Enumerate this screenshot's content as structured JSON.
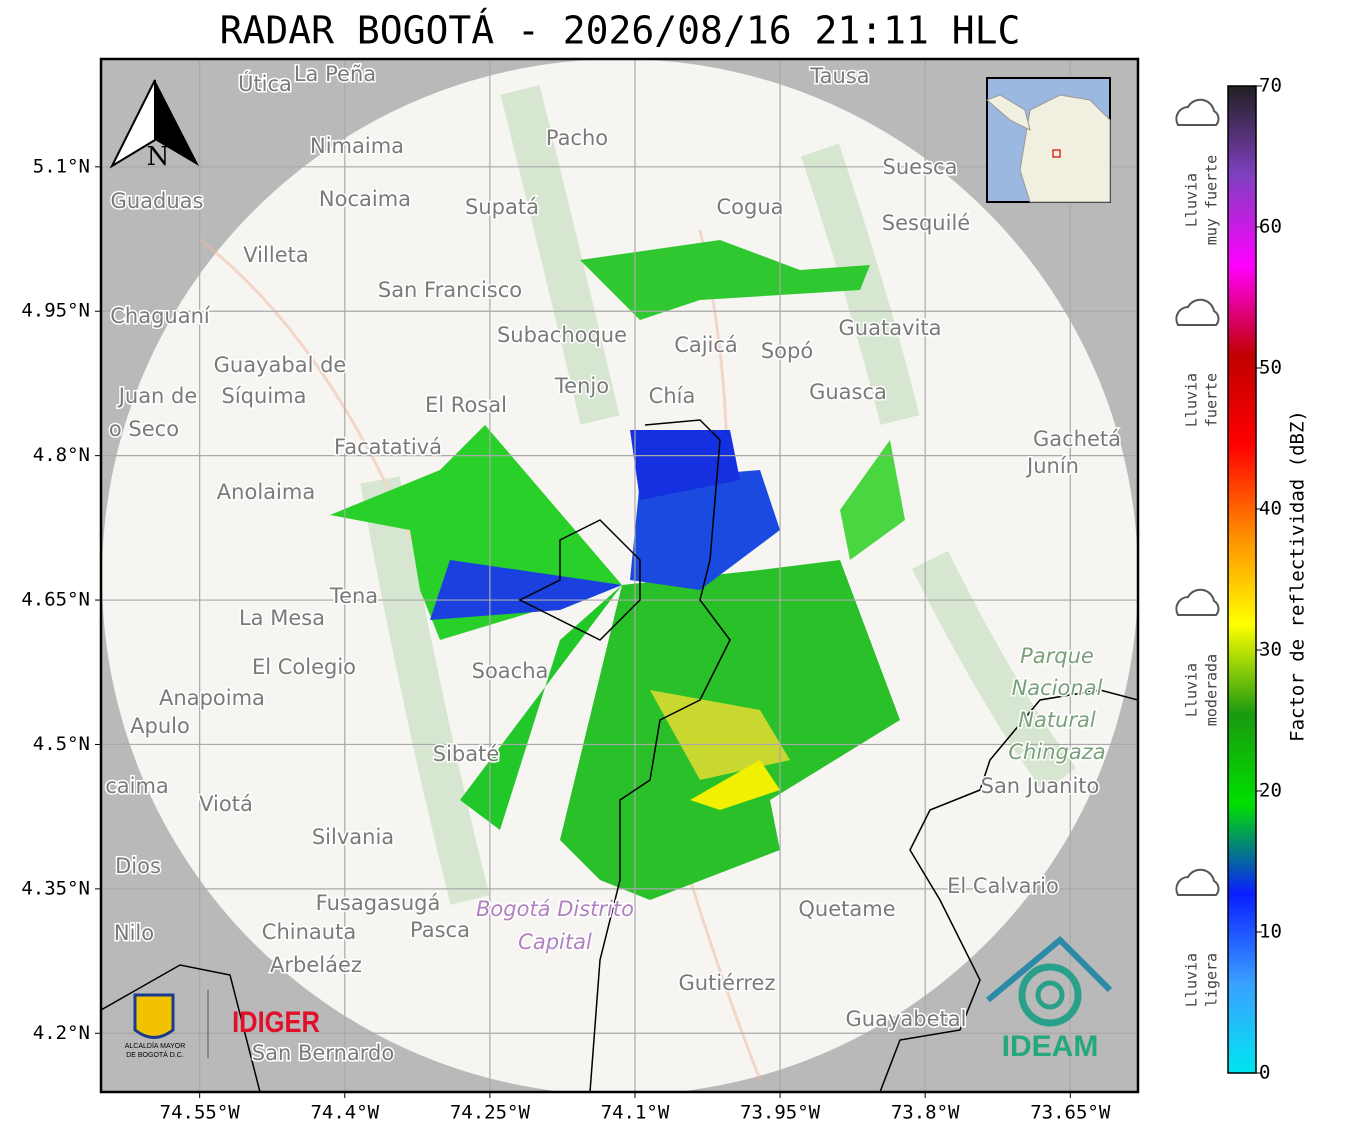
{
  "title": "RADAR BOGOTÁ - 2026/08/16 21:11 HLC",
  "map": {
    "xlim": [
      -74.652,
      -73.58
    ],
    "ylim": [
      4.139,
      5.212
    ],
    "grid": true,
    "xticks": [
      {
        "value": -74.55,
        "label": "74.55°W"
      },
      {
        "value": -74.4,
        "label": "74.4°W"
      },
      {
        "value": -74.25,
        "label": "74.25°W"
      },
      {
        "value": -74.1,
        "label": "74.1°W"
      },
      {
        "value": -73.95,
        "label": "73.95°W"
      },
      {
        "value": -73.8,
        "label": "73.8°W"
      },
      {
        "value": -73.65,
        "label": "73.65°W"
      }
    ],
    "yticks": [
      {
        "value": 5.1,
        "label": "5.1°N"
      },
      {
        "value": 4.95,
        "label": "4.95°N"
      },
      {
        "value": 4.8,
        "label": "4.8°N"
      },
      {
        "value": 4.65,
        "label": "4.65°N"
      },
      {
        "value": 4.5,
        "label": "4.5°N"
      },
      {
        "value": 4.35,
        "label": "4.35°N"
      },
      {
        "value": 4.2,
        "label": "4.2°N"
      }
    ],
    "places": [
      "Útica",
      "La Peña",
      "Tausa",
      "Pacho",
      "Nimaima",
      "Guaduas",
      "Nocaima",
      "Supatá",
      "Cogua",
      "Suesca",
      "Sesquilé",
      "Villeta",
      "San Francisco",
      "Chaguaní",
      "Subachoque",
      "Cajicá",
      "Sopó",
      "Guatavita",
      "Guayabal de",
      "Síquima",
      "Juan de",
      "o Seco",
      "Tenjo",
      "Chía",
      "Guasca",
      "El Rosal",
      "Facatativá",
      "Gachetá",
      "Junín",
      "Anolaima",
      "Tena",
      "La Mesa",
      "Soacha",
      "El Colegio",
      "Anapoima",
      "Apulo",
      "Sibaté",
      "caima",
      "Viotá",
      "San Juanito",
      "Silvania",
      "Dios",
      "El Calvario",
      "Fusagasugá",
      "Quetame",
      "Nilo",
      "Chinauta",
      "Pasca",
      "Arbeláez",
      "Gutiérrez",
      "Guayabetal",
      "San Bernardo"
    ],
    "park": [
      "Parque",
      "Nacional",
      "Natural",
      "Chingaza"
    ],
    "district": [
      "Bogotá Distrito",
      "Capital"
    ]
  },
  "north": "N",
  "colorbar": {
    "label": "Factor de reflectividad (dBZ)",
    "lim": [
      0,
      70
    ],
    "ticks": [
      0,
      10,
      20,
      30,
      40,
      50,
      60,
      70
    ],
    "colors": [
      "#00e5f0",
      "#3aa0ff",
      "#0a1eff",
      "#00e000",
      "#1a9a10",
      "#ffff00",
      "#ff8c00",
      "#ff0000",
      "#c00000",
      "#ff00ff",
      "#8040c0",
      "#202020"
    ]
  },
  "legend": [
    [
      "Lluvia",
      "muy fuerte"
    ],
    [
      "Lluvia",
      "fuerte"
    ],
    [
      "Lluvia",
      "moderada"
    ],
    [
      "Lluvia",
      "ligera"
    ]
  ],
  "logos": {
    "alcaldia": [
      "ALCALDÍA MAYOR",
      "DE BOGOTÁ D.C."
    ],
    "idiger": "IDIGER",
    "ideam": "IDEAM"
  }
}
